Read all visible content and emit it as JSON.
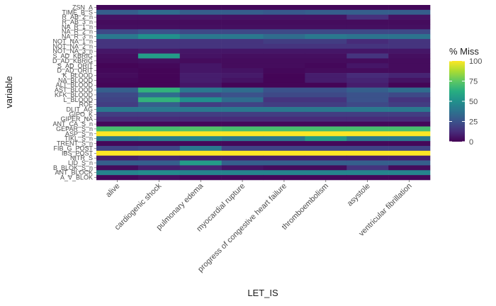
{
  "chart_data": {
    "type": "heatmap",
    "xlabel": "LET_IS",
    "ylabel": "variable",
    "categories": [
      "alive",
      "cardiogenic shock",
      "pulmonary edema",
      "myocardial rupture",
      "progress of congestive heart failure",
      "thromboembolism",
      "asystole",
      "ventricular fibrillation"
    ],
    "y_tick_labels": [
      "ZSN_A",
      "TIME_B_S",
      "R_AB_2_n",
      "R_AB_3_n",
      "NA_R_1_n",
      "NA_R_2_n",
      "NA_R_3_n",
      "NOT_NA_1_n",
      "NOT_NA_2_n",
      "NOT_NA_3_n",
      "S_AD_KBRIG",
      "D_AD_KBRIG",
      "S_AD_ORIT",
      "D_AD_ORIT",
      "K_BLOOD",
      "NA_BLOOD",
      "ALT_BLOOD",
      "AST_BLOOD",
      "KFK_BLOOD",
      "L_BLOOD",
      "ROE",
      "DLIT_AG",
      "GIPO_K",
      "GIPER_NA",
      "ANT_CA_S_n",
      "GEPAR_S_n",
      "ASP_S_n",
      "TIKL_S_n",
      "TRENT_S_n",
      "FIB_G_POST",
      "IBS_POST",
      "NITR_S",
      "LID_S_n",
      "B_BLOK_S_n",
      "ANT_BLOCK",
      "A_V_BLOK"
    ],
    "legend": {
      "title": "% Miss",
      "ticks": [
        0,
        25,
        50,
        75,
        100
      ],
      "range": [
        0,
        100
      ],
      "colormap": "viridis",
      "placement": "right"
    },
    "rows": [
      [
        2,
        2,
        2,
        2,
        2,
        2,
        2,
        2
      ],
      [
        30,
        35,
        30,
        30,
        28,
        30,
        30,
        30
      ],
      [
        5,
        5,
        6,
        5,
        5,
        5,
        14,
        5
      ],
      [
        3,
        3,
        3,
        3,
        3,
        3,
        3,
        3
      ],
      [
        4,
        4,
        4,
        4,
        4,
        4,
        4,
        4
      ],
      [
        22,
        25,
        22,
        22,
        22,
        22,
        22,
        22
      ],
      [
        40,
        50,
        40,
        40,
        35,
        40,
        38,
        38
      ],
      [
        15,
        15,
        15,
        15,
        18,
        18,
        12,
        15
      ],
      [
        15,
        15,
        15,
        15,
        15,
        15,
        15,
        15
      ],
      [
        6,
        7,
        6,
        6,
        6,
        6,
        6,
        6
      ],
      [
        4,
        55,
        5,
        4,
        4,
        4,
        15,
        4
      ],
      [
        3,
        4,
        3,
        3,
        3,
        3,
        3,
        3
      ],
      [
        1,
        2,
        6,
        3,
        3,
        2,
        6,
        3
      ],
      [
        2,
        1,
        6,
        5,
        2,
        3,
        3,
        3
      ],
      [
        3,
        1,
        8,
        7,
        1,
        8,
        12,
        10
      ],
      [
        2,
        1,
        8,
        5,
        1,
        8,
        10,
        5
      ],
      [
        1,
        1,
        6,
        1,
        1,
        1,
        8,
        1
      ],
      [
        30,
        65,
        40,
        35,
        25,
        25,
        30,
        35
      ],
      [
        22,
        35,
        22,
        25,
        22,
        22,
        25,
        22
      ],
      [
        20,
        65,
        50,
        35,
        15,
        15,
        25,
        15
      ],
      [
        18,
        30,
        18,
        20,
        18,
        18,
        22,
        18
      ],
      [
        40,
        40,
        40,
        40,
        40,
        40,
        40,
        40
      ],
      [
        18,
        18,
        18,
        18,
        18,
        18,
        18,
        18
      ],
      [
        12,
        12,
        12,
        12,
        12,
        12,
        12,
        12
      ],
      [
        2,
        2,
        2,
        2,
        2,
        2,
        2,
        2
      ],
      [
        70,
        70,
        72,
        70,
        70,
        70,
        70,
        70
      ],
      [
        100,
        100,
        100,
        100,
        100,
        100,
        100,
        100
      ],
      [
        40,
        42,
        45,
        40,
        40,
        55,
        40,
        40
      ],
      [
        2,
        2,
        2,
        2,
        2,
        2,
        2,
        2
      ],
      [
        20,
        22,
        40,
        20,
        20,
        20,
        20,
        20
      ],
      [
        100,
        100,
        100,
        100,
        100,
        100,
        100,
        100
      ],
      [
        8,
        10,
        8,
        8,
        8,
        8,
        8,
        8
      ],
      [
        30,
        30,
        55,
        30,
        30,
        30,
        30,
        30
      ],
      [
        3,
        8,
        10,
        5,
        3,
        3,
        15,
        3
      ],
      [
        45,
        48,
        45,
        45,
        45,
        45,
        45,
        45
      ],
      [
        2,
        4,
        2,
        2,
        2,
        2,
        2,
        2
      ]
    ]
  }
}
